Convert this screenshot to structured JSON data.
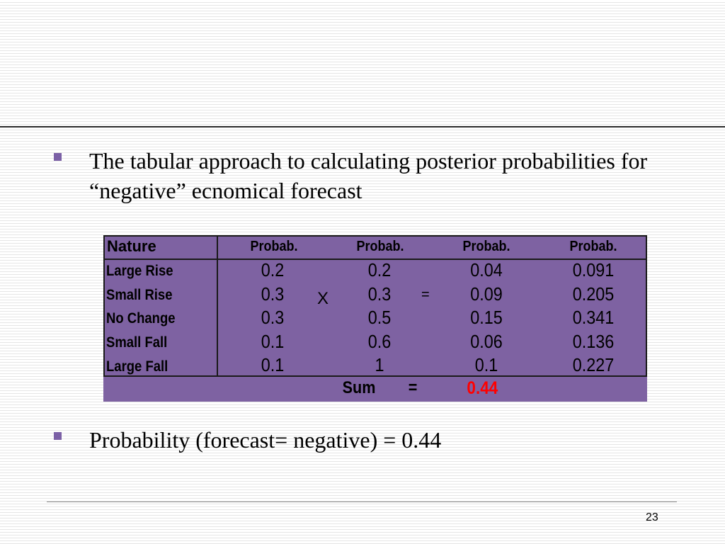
{
  "bullets": [
    {
      "text": "The tabular approach to calculating posterior probabilities for “negative” ecnomical forecast"
    },
    {
      "text": "Probability (forecast= negative) = 0.44"
    }
  ],
  "table": {
    "headers": [
      "Nature",
      "Probab.",
      "Probab.",
      "Probab.",
      "Probab."
    ],
    "rows": [
      {
        "label": "Large Rise",
        "values": [
          "0.2",
          "0.2",
          "0.04",
          "0.091"
        ]
      },
      {
        "label": "Small Rise",
        "values": [
          "0.3",
          "0.3",
          "0.09",
          "0.205"
        ]
      },
      {
        "label": "No Change",
        "values": [
          "0.3",
          "0.5",
          "0.15",
          "0.341"
        ]
      },
      {
        "label": "Small Fall",
        "values": [
          "0.1",
          "0.6",
          "0.06",
          "0.136"
        ]
      },
      {
        "label": "Large Fall",
        "values": [
          "0.1",
          "1",
          "0.1",
          "0.227"
        ]
      }
    ],
    "multiply_sign": "X",
    "equals_sign": "=",
    "sum_label": "Sum",
    "sum_equals": "=",
    "sum_value": "0.44"
  },
  "colors": {
    "table_bg": "#7e62a2",
    "bullet": "#7b60a6",
    "sum_value": "#ff0000"
  },
  "page_number": "23"
}
